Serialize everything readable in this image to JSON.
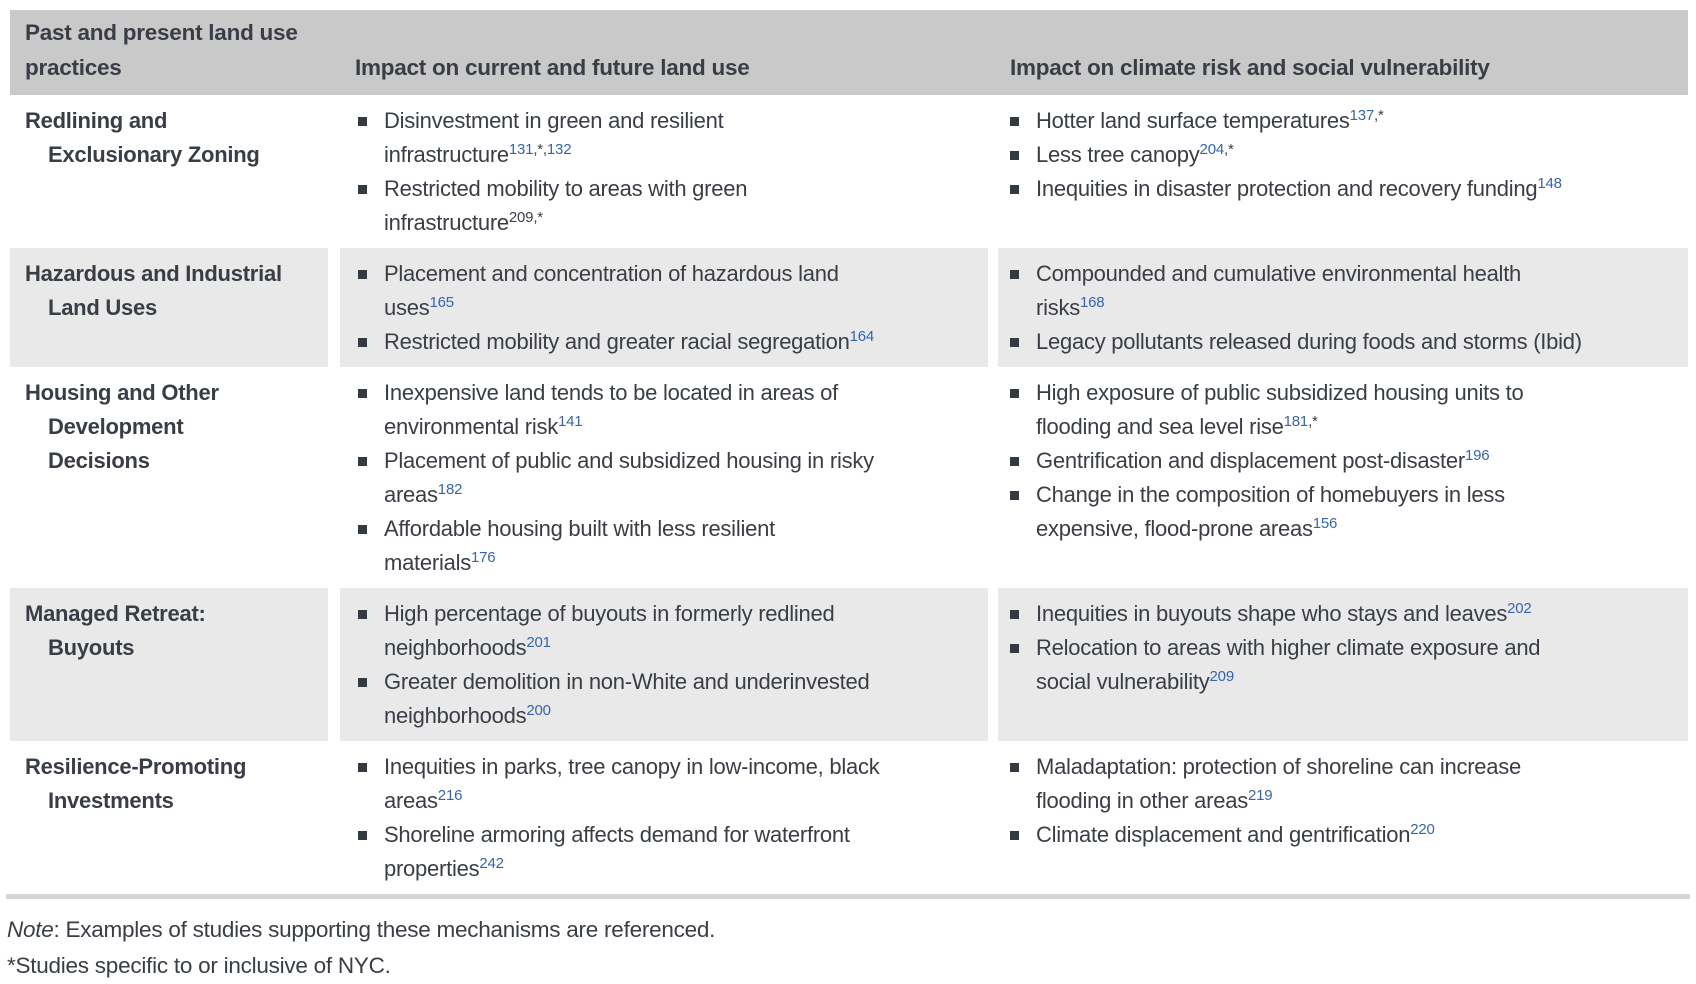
{
  "colors": {
    "header_bg": "#c9c9c9",
    "alt_row_bg": "#e9e9e9",
    "text": "#393e46",
    "citation_blue": "#3565ae",
    "rule": "#d5d5d5"
  },
  "table": {
    "header": {
      "col1": "Past and present land use\npractices",
      "col2": "Impact on current and future land use",
      "col3": "Impact on climate risk and social vulnerability"
    },
    "rows": [
      {
        "practice": "Redlining and\nExclusionary Zoning",
        "land_use_impacts": [
          [
            {
              "t": "Disinvestment in green and resilient\ninfrastructure"
            },
            {
              "s": "131",
              "c": "blue"
            },
            {
              "s": ",*,",
              "c": "dark"
            },
            {
              "s": "132",
              "c": "blue"
            }
          ],
          [
            {
              "t": "Restricted mobility to areas with green\ninfrastructure"
            },
            {
              "s": "209,*",
              "c": "dark"
            }
          ]
        ],
        "climate_impacts": [
          [
            {
              "t": "Hotter land surface temperatures"
            },
            {
              "s": "137",
              "c": "blue"
            },
            {
              "s": ",*",
              "c": "dark"
            }
          ],
          [
            {
              "t": "Less tree canopy"
            },
            {
              "s": "204",
              "c": "blue"
            },
            {
              "s": ",*",
              "c": "dark"
            }
          ],
          [
            {
              "t": "Inequities in disaster protection and recovery funding"
            },
            {
              "s": "148",
              "c": "blue"
            }
          ]
        ]
      },
      {
        "practice": "Hazardous and Industrial\nLand Uses",
        "land_use_impacts": [
          [
            {
              "t": "Placement and concentration of hazardous land\nuses"
            },
            {
              "s": "165",
              "c": "blue"
            }
          ],
          [
            {
              "t": "Restricted mobility and greater racial segregation"
            },
            {
              "s": "164",
              "c": "blue"
            }
          ]
        ],
        "climate_impacts": [
          [
            {
              "t": "Compounded and cumulative environmental health\nrisks"
            },
            {
              "s": "168",
              "c": "blue"
            }
          ],
          [
            {
              "t": "Legacy pollutants released during foods and storms (Ibid)"
            }
          ]
        ]
      },
      {
        "practice": "Housing and Other\nDevelopment\nDecisions",
        "land_use_impacts": [
          [
            {
              "t": "Inexpensive land tends to be located in areas of\nenvironmental risk"
            },
            {
              "s": "141",
              "c": "blue"
            }
          ],
          [
            {
              "t": "Placement of public and subsidized housing in risky\nareas"
            },
            {
              "s": "182",
              "c": "blue"
            }
          ],
          [
            {
              "t": "Affordable housing built with less resilient\nmaterials"
            },
            {
              "s": "176",
              "c": "blue"
            }
          ]
        ],
        "climate_impacts": [
          [
            {
              "t": "High exposure of public subsidized housing units to\nflooding and sea level rise"
            },
            {
              "s": "181",
              "c": "blue"
            },
            {
              "s": ",*",
              "c": "dark"
            }
          ],
          [
            {
              "t": "Gentrification and displacement post-disaster"
            },
            {
              "s": "196",
              "c": "blue"
            }
          ],
          [
            {
              "t": "Change in the composition of homebuyers in less\nexpensive, flood-prone areas"
            },
            {
              "s": "156",
              "c": "blue"
            }
          ]
        ]
      },
      {
        "practice": "Managed Retreat:\nBuyouts",
        "land_use_impacts": [
          [
            {
              "t": "High percentage of buyouts in formerly redlined\nneighborhoods"
            },
            {
              "s": "201",
              "c": "blue"
            }
          ],
          [
            {
              "t": "Greater demolition in non-White and underinvested\nneighborhoods"
            },
            {
              "s": "200",
              "c": "blue"
            }
          ]
        ],
        "climate_impacts": [
          [
            {
              "t": "Inequities in buyouts shape who stays and leaves"
            },
            {
              "s": "202",
              "c": "blue"
            }
          ],
          [
            {
              "t": "Relocation to areas with higher climate exposure and\nsocial vulnerability"
            },
            {
              "s": "209",
              "c": "blue"
            }
          ]
        ]
      },
      {
        "practice": "Resilience-Promoting\nInvestments",
        "land_use_impacts": [
          [
            {
              "t": "Inequities in parks, tree canopy in low-income, black\nareas"
            },
            {
              "s": "216",
              "c": "blue"
            }
          ],
          [
            {
              "t": "Shoreline armoring affects demand for waterfront\nproperties"
            },
            {
              "s": "242",
              "c": "blue"
            }
          ]
        ],
        "climate_impacts": [
          [
            {
              "t": "Maladaptation: protection of shoreline can increase\nflooding in other areas"
            },
            {
              "s": "219",
              "c": "blue"
            }
          ],
          [
            {
              "t": "Climate displacement and gentrification"
            },
            {
              "s": "220",
              "c": "blue"
            }
          ]
        ]
      }
    ]
  },
  "notes": {
    "note_prefix": "Note",
    "note_body": ": Examples of studies supporting these mechanisms are referenced.",
    "asterisk_note": "*Studies specific to or inclusive of NYC."
  }
}
